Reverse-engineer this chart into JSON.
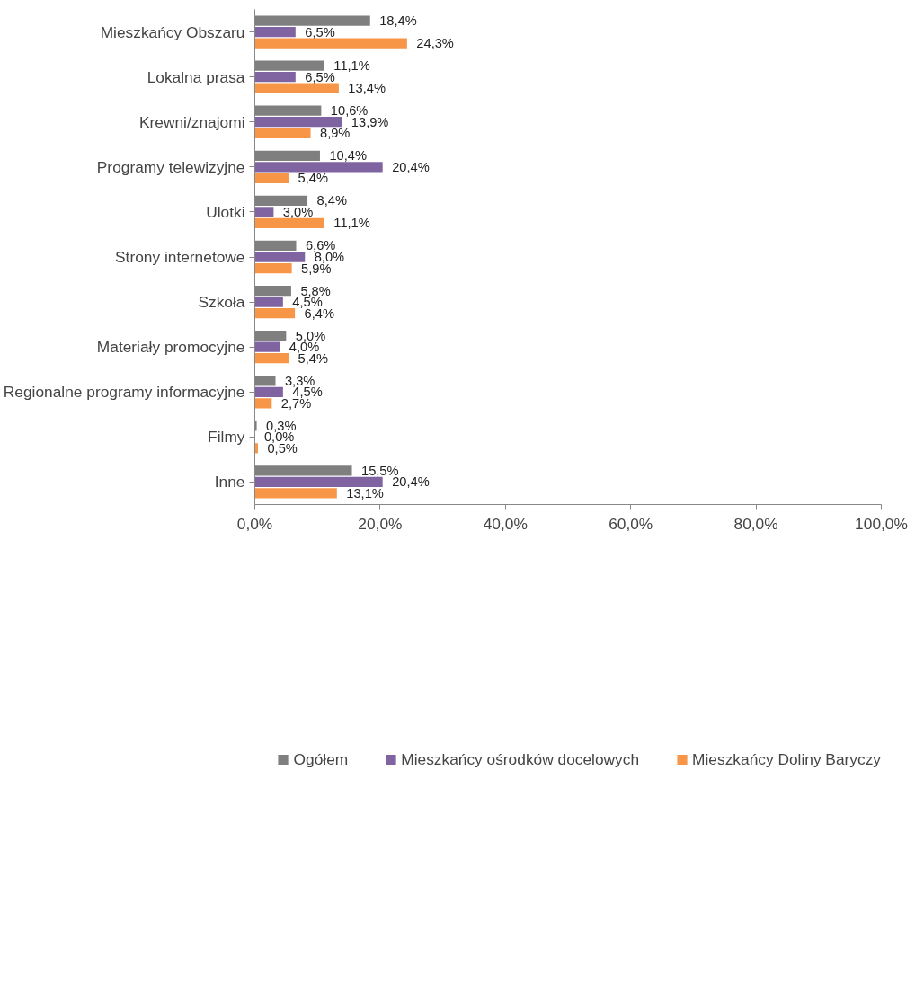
{
  "chart_data": {
    "type": "bar",
    "orientation": "horizontal",
    "categories": [
      "Mieszkańcy Obszaru",
      "Lokalna prasa",
      "Krewni/znajomi",
      "Programy telewizyjne",
      "Ulotki",
      "Strony internetowe",
      "Szkoła",
      "Materiały promocyjne",
      "Regionalne programy informacyjne",
      "Filmy",
      "Inne"
    ],
    "series": [
      {
        "name": "Ogółem",
        "color": "#7f7f7f",
        "values": [
          18.4,
          11.1,
          10.6,
          10.4,
          8.4,
          6.6,
          5.8,
          5.0,
          3.3,
          0.3,
          15.5
        ],
        "value_labels": [
          "18,4%",
          "11,1%",
          "10,6%",
          "10,4%",
          "8,4%",
          "6,6%",
          "5,8%",
          "5,0%",
          "3,3%",
          "0,3%",
          "15,5%"
        ]
      },
      {
        "name": "Mieszkańcy ośrodków docelowych",
        "color": "#8064a2",
        "values": [
          6.5,
          6.5,
          13.9,
          20.4,
          3.0,
          8.0,
          4.5,
          4.0,
          4.5,
          0.0,
          20.4
        ],
        "value_labels": [
          "6,5%",
          "6,5%",
          "13,9%",
          "20,4%",
          "3,0%",
          "8,0%",
          "4,5%",
          "4,0%",
          "4,5%",
          "0,0%",
          "20,4%"
        ]
      },
      {
        "name": "Mieszkańcy Doliny Baryczy",
        "color": "#f79646",
        "values": [
          24.3,
          13.4,
          8.9,
          5.4,
          11.1,
          5.9,
          6.4,
          5.4,
          2.7,
          0.5,
          13.1
        ],
        "value_labels": [
          "24,3%",
          "13,4%",
          "8,9%",
          "5,4%",
          "11,1%",
          "5,9%",
          "6,4%",
          "5,4%",
          "2,7%",
          "0,5%",
          "13,1%"
        ]
      }
    ],
    "xlim": [
      0,
      100
    ],
    "xticks": [
      {
        "value": 0,
        "label": "0,0%"
      },
      {
        "value": 20,
        "label": "20,0%"
      },
      {
        "value": 40,
        "label": "40,0%"
      },
      {
        "value": 60,
        "label": "60,0%"
      },
      {
        "value": 80,
        "label": "80,0%"
      },
      {
        "value": 100,
        "label": "100,0%"
      }
    ],
    "grid": false,
    "legend": "bottom"
  }
}
